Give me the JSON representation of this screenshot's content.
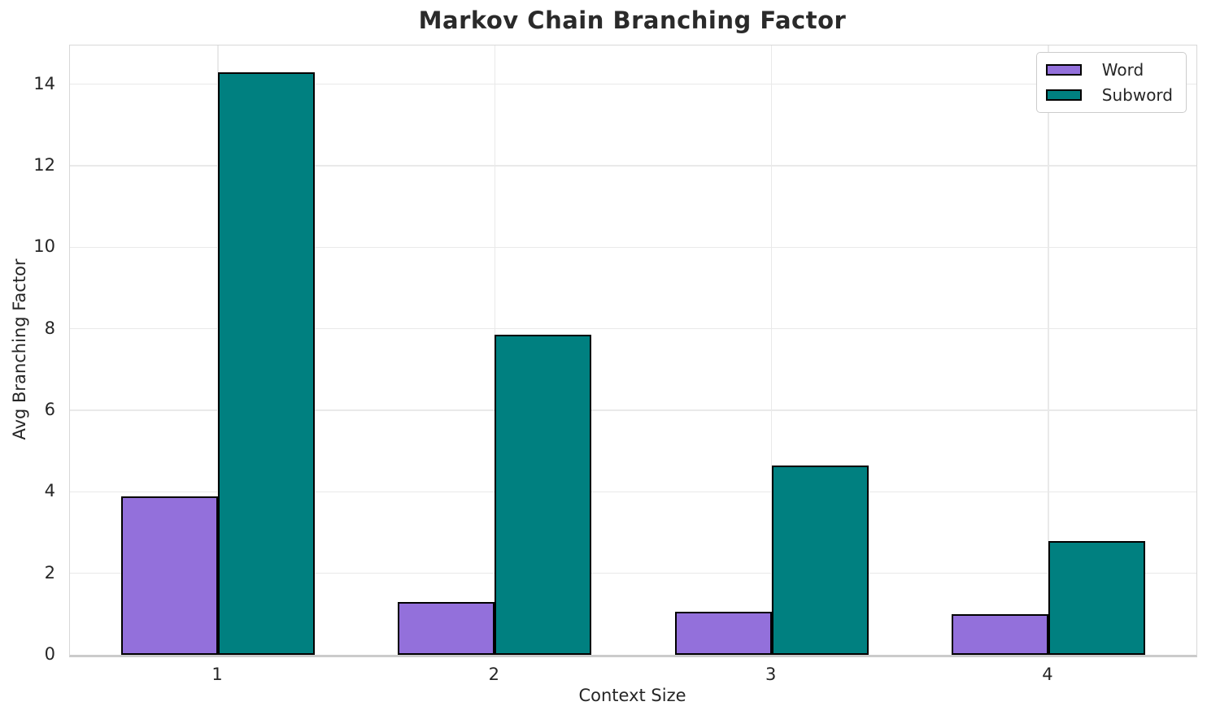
{
  "chart_data": {
    "type": "bar",
    "title": "Markov Chain Branching Factor",
    "xlabel": "Context Size",
    "ylabel": "Avg Branching Factor",
    "categories": [
      "1",
      "2",
      "3",
      "4"
    ],
    "series": [
      {
        "name": "Word",
        "color": "#9370DB",
        "values": [
          3.88,
          1.3,
          1.05,
          1.0
        ]
      },
      {
        "name": "Subword",
        "color": "#008080",
        "values": [
          14.3,
          7.85,
          4.65,
          2.8
        ]
      }
    ],
    "bar_edge_color": "#000000",
    "bar_width": 0.35,
    "xlim": [
      -0.535,
      3.535
    ],
    "ylim": [
      0,
      14.95
    ],
    "yticks": [
      0,
      2,
      4,
      6,
      8,
      10,
      12,
      14
    ],
    "grid": true,
    "legend_position": "upper right"
  },
  "style": {
    "title_color": "#2a2a2a",
    "text_color": "#262626",
    "grid_color": "#e9e9e9",
    "spine_color": "#d8d8d8",
    "background": "#ffffff"
  }
}
